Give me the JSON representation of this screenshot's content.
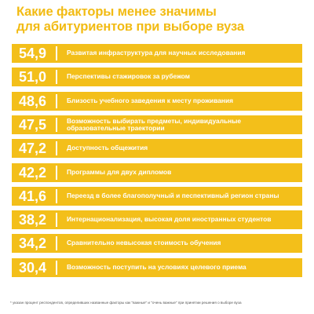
{
  "title_line1": "Какие факторы менее значимы",
  "title_line2": "для абитуриентов при выборе вуза",
  "chart_data": {
    "type": "bar",
    "title": "Какие факторы менее значимы для абитуриентов при выборе вуза",
    "categories": [
      "Развитая инфраструктура для научных исследования",
      "Перспективы стажировок за рубежом",
      "Близость учебного заведения к месту проживания",
      "Возможность выбирать предметы, индивидуальные образовательные траектории",
      "Доступность общежития",
      "Программы для двух дипломов",
      "Переезд в более благополучный и песпективный регион страны",
      "Интернационализация, высокая доля иностранных студентов",
      "Сравнительно невысокая стоимость обучения",
      "Возможность поступить на условиях целевого приема"
    ],
    "values": [
      "54,9",
      "51,0",
      "48,6",
      "47,5",
      "47,2",
      "42,2",
      "41,6",
      "38,2",
      "34,2",
      "30,4"
    ],
    "bar_color": "#f3bf1a",
    "title_color": "#f2bb13"
  },
  "footnote": "* указан процент респондентов, определивших названные факторы как \"важные\" и \"очень важные\" при принятии решения о выборе вуза"
}
